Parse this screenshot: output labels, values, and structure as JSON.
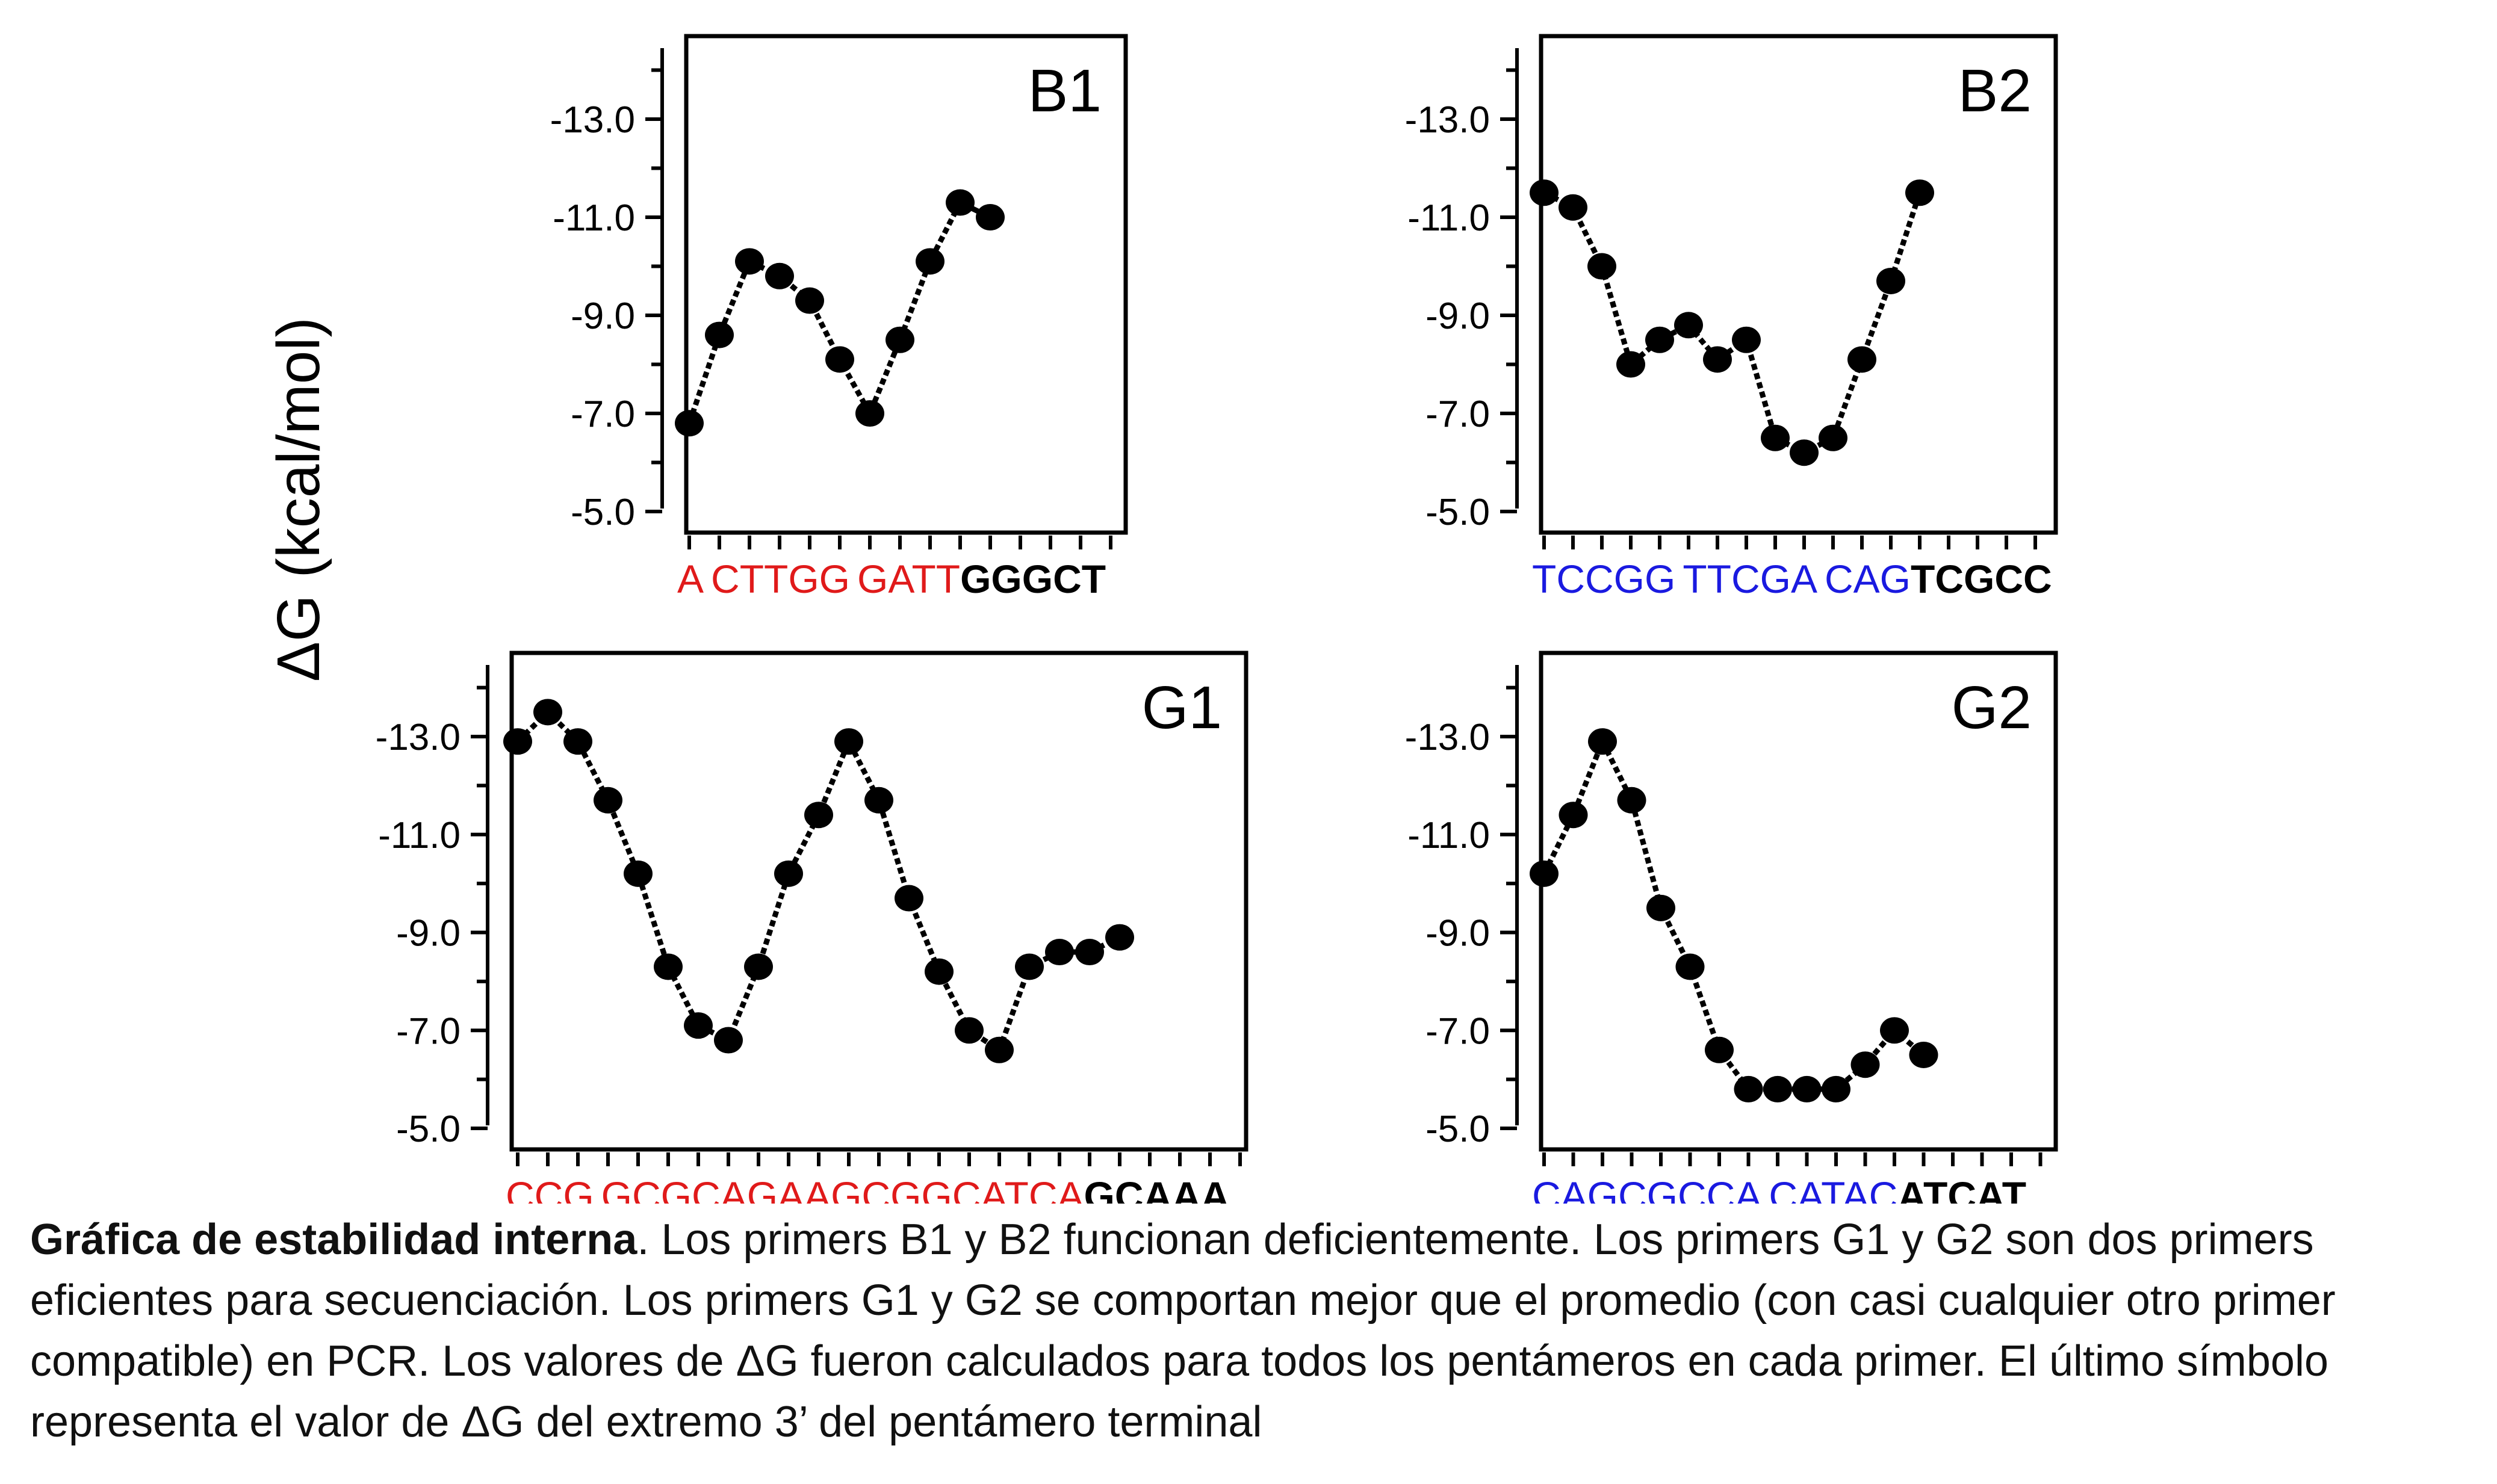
{
  "y_axis_label": "ΔG (kcal/mol)",
  "caption": {
    "bold": "Gráfica de estabilidad interna",
    "text": ". Los primers B1 y B2 funcionan deficientemente. Los primers G1 y G2 son dos primers eficientes para secuenciación. Los primers G1 y G2 se comportan mejor que el promedio (con casi cualquier otro primer compatible) en PCR. Los valores de ΔG fueron calculados para todos los pentámeros en cada primer. El último símbolo representa el valor de ΔG del extremo 3’ del pentámero terminal"
  },
  "chart_data": [
    {
      "type": "line",
      "title": "B1",
      "ylabel": "ΔG (kcal/mol)",
      "yticks": [
        "-13.0",
        "-11.0",
        "-9.0",
        "-7.0",
        "-5.0"
      ],
      "ylim": [
        -4.5,
        -14.5
      ],
      "sequence": [
        {
          "text": "A",
          "color": "#e01a1a",
          "bold": false
        },
        {
          "text": "CTTGG",
          "color": "#e01a1a",
          "bold": false
        },
        {
          "text": "GATT",
          "color": "#e01a1a",
          "bold": false
        },
        {
          "text": "GGGCT",
          "color": "#000000",
          "bold": true
        }
      ],
      "series": [
        {
          "values": [
            -6.8,
            -8.6,
            -10.1,
            -9.8,
            -9.3,
            -8.1,
            -7.0,
            -8.5,
            -10.1,
            -11.3,
            -11.0
          ]
        }
      ]
    },
    {
      "type": "line",
      "title": "B2",
      "ylabel": "ΔG (kcal/mol)",
      "yticks": [
        "-13.0",
        "-11.0",
        "-9.0",
        "-7.0",
        "-5.0"
      ],
      "ylim": [
        -4.5,
        -14.5
      ],
      "sequence": [
        {
          "text": "TCCGG",
          "color": "#1a1ae0",
          "bold": false
        },
        {
          "text": "TTCGA",
          "color": "#1a1ae0",
          "bold": false
        },
        {
          "text": "CAG",
          "color": "#1a1ae0",
          "bold": false
        },
        {
          "text": "TCGCC",
          "color": "#000000",
          "bold": true
        }
      ],
      "series": [
        {
          "values": [
            -11.5,
            -11.2,
            -10.0,
            -8.0,
            -8.5,
            -8.8,
            -8.1,
            -8.5,
            -6.5,
            -6.2,
            -6.5,
            -8.1,
            -9.7,
            -11.5
          ]
        }
      ]
    },
    {
      "type": "line",
      "title": "G1",
      "ylabel": "ΔG (kcal/mol)",
      "yticks": [
        "-13.0",
        "-11.0",
        "-9.0",
        "-7.0",
        "-5.0"
      ],
      "ylim": [
        -4.5,
        -14.5
      ],
      "sequence": [
        {
          "text": "CCG",
          "color": "#e01a1a",
          "bold": false
        },
        {
          "text": "GCGCAGAAGCGGCATCA",
          "color": "#e01a1a",
          "bold": false
        },
        {
          "text": "GCAAA",
          "color": "#000000",
          "bold": true
        }
      ],
      "series": [
        {
          "values": [
            -12.9,
            -13.5,
            -12.9,
            -11.7,
            -10.2,
            -8.3,
            -7.1,
            -6.8,
            -8.3,
            -10.2,
            -11.4,
            -12.9,
            -11.7,
            -9.7,
            -8.2,
            -7.0,
            -6.6,
            -8.3,
            -8.6,
            -8.6,
            -8.9
          ]
        }
      ]
    },
    {
      "type": "line",
      "title": "G2",
      "ylabel": "ΔG (kcal/mol)",
      "yticks": [
        "-13.0",
        "-11.0",
        "-9.0",
        "-7.0",
        "-5.0"
      ],
      "ylim": [
        -4.5,
        -14.5
      ],
      "sequence": [
        {
          "text": "CAGCGCCA",
          "color": "#1a1ae0",
          "bold": false
        },
        {
          "text": "CATAC",
          "color": "#1a1ae0",
          "bold": false
        },
        {
          "text": "ATCAT",
          "color": "#000000",
          "bold": true
        }
      ],
      "series": [
        {
          "values": [
            -10.2,
            -11.4,
            -12.9,
            -11.7,
            -9.5,
            -8.3,
            -6.6,
            -5.8,
            -5.8,
            -5.8,
            -5.8,
            -6.3,
            -7.0,
            -6.5
          ]
        }
      ]
    }
  ]
}
